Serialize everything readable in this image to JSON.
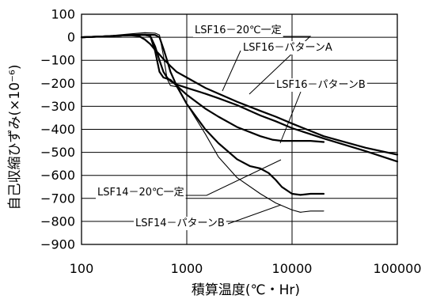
{
  "chart_data": {
    "type": "line",
    "title": "",
    "xlabel": "積算温度(℃・Hr)",
    "ylabel": "自己収縮ひずみ(×10⁻⁶)",
    "xscale": "log",
    "xlim": [
      100,
      100000
    ],
    "ylim": [
      -900,
      100
    ],
    "grid": true,
    "xticks": [
      "100",
      "1000",
      "10000",
      "100000"
    ],
    "yticks": [
      "100",
      "0",
      "−100",
      "−200",
      "−300",
      "−400",
      "−500",
      "−600",
      "−700",
      "−800",
      "−900"
    ],
    "series": [
      {
        "name": "LSF16－20℃一定",
        "stroke_width": 2.2,
        "color": "#000000",
        "x": [
          100,
          150,
          200,
          250,
          300,
          350,
          400,
          450,
          500,
          550,
          600,
          650,
          700,
          800,
          1000,
          1500,
          2000,
          3000,
          5000,
          7000,
          10000,
          20000,
          50000,
          100000
        ],
        "y": [
          0,
          3,
          6,
          8,
          8,
          5,
          -10,
          -30,
          -55,
          -75,
          -95,
          -110,
          -125,
          -150,
          -175,
          -220,
          -245,
          -280,
          -320,
          -345,
          -375,
          -430,
          -480,
          -510
        ]
      },
      {
        "name": "LSF16－パターンA",
        "stroke_width": 2.2,
        "color": "#000000",
        "x": [
          100,
          200,
          300,
          400,
          450,
          500,
          550,
          600,
          650,
          700,
          800,
          1000,
          1500,
          2000,
          3000,
          5000,
          7000,
          10000,
          20000,
          50000,
          100000
        ],
        "y": [
          0,
          5,
          10,
          10,
          5,
          -40,
          -100,
          -150,
          -175,
          -190,
          -205,
          -220,
          -245,
          -265,
          -295,
          -340,
          -365,
          -395,
          -440,
          -495,
          -540
        ]
      },
      {
        "name": "LSF16－パターンB",
        "stroke_width": 2.2,
        "color": "#000000",
        "x": [
          100,
          200,
          300,
          400,
          450,
          500,
          550,
          600,
          650,
          700,
          800,
          1000,
          1500,
          2000,
          3000,
          5000,
          6500,
          8000,
          10000,
          15000,
          20000
        ],
        "y": [
          0,
          5,
          10,
          10,
          5,
          -60,
          -150,
          -175,
          -180,
          -185,
          -210,
          -250,
          -310,
          -345,
          -390,
          -430,
          -445,
          -450,
          -450,
          -450,
          -455
        ]
      },
      {
        "name": "LSF14－20℃一定",
        "stroke_width": 2.2,
        "color": "#000000",
        "x": [
          100,
          200,
          300,
          400,
          500,
          550,
          600,
          650,
          700,
          800,
          1000,
          1500,
          2000,
          3000,
          4000,
          5000,
          6000,
          7000,
          8000,
          10000,
          12000,
          15000,
          20000
        ],
        "y": [
          0,
          5,
          10,
          12,
          10,
          0,
          -50,
          -100,
          -150,
          -210,
          -290,
          -400,
          -460,
          -530,
          -560,
          -570,
          -590,
          -620,
          -650,
          -680,
          -685,
          -680,
          -680
        ]
      },
      {
        "name": "LSF14－パターンB",
        "stroke_width": 1.1,
        "color": "#000000",
        "x": [
          100,
          200,
          300,
          400,
          500,
          550,
          600,
          650,
          700,
          800,
          1000,
          1500,
          2000,
          3000,
          5000,
          7000,
          10000,
          12000,
          15000,
          20000
        ],
        "y": [
          0,
          8,
          15,
          20,
          18,
          10,
          -80,
          -180,
          -210,
          -215,
          -290,
          -420,
          -520,
          -610,
          -680,
          -720,
          -750,
          -760,
          -755,
          -755
        ]
      }
    ],
    "annotations": [
      {
        "text": "LSF16－20℃一定",
        "series": "LSF16－20℃一定"
      },
      {
        "text": "LSF16－パターンA",
        "series": "LSF16－パターンA"
      },
      {
        "text": "LSF16－パターンB",
        "series": "LSF16－パターンB"
      },
      {
        "text": "LSF14－20℃一定",
        "series": "LSF14－20℃一定"
      },
      {
        "text": "LSF14－パターンB",
        "series": "LSF14－パターンB"
      }
    ]
  }
}
